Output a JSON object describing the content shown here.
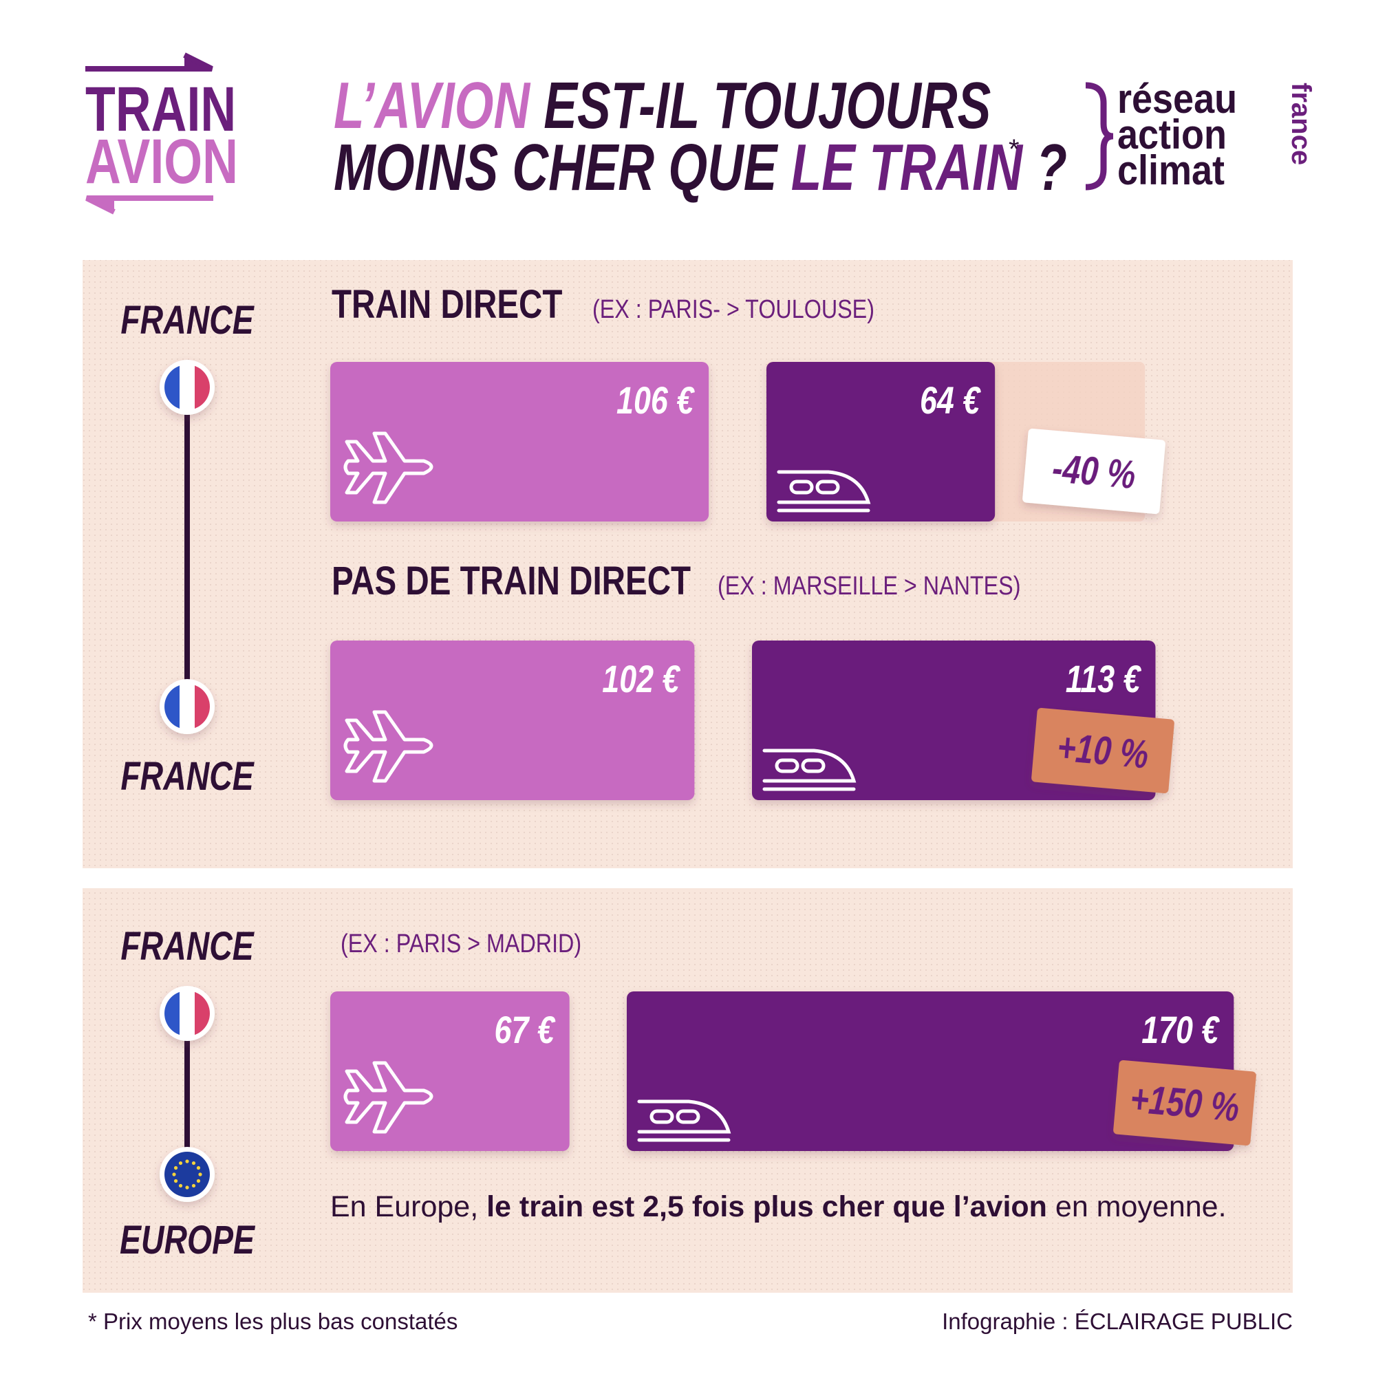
{
  "header": {
    "logo": [
      "TRAIN",
      "AVION"
    ],
    "title": {
      "plane": "L’AVION",
      "line1": " EST-IL TOUJOURS",
      "line2": "MOINS CHER QUE ",
      "train": "LE TRAIN",
      "end": " ?",
      "asterisk": "*"
    },
    "organisation": [
      "réseau",
      "action",
      "climat",
      "france"
    ]
  },
  "sections": [
    {
      "from": "FRANCE",
      "to": "FRANCE",
      "rows": [
        {
          "heading": "TRAIN DIRECT",
          "example": "(EX : PARIS- > TOULOUSE)",
          "plane": {
            "value": 106,
            "label": "106 €"
          },
          "train": {
            "value": 64,
            "label": "64 €"
          },
          "difference": "-40 %"
        },
        {
          "heading": "PAS DE TRAIN DIRECT",
          "example": "(EX : MARSEILLE > NANTES)",
          "plane": {
            "value": 102,
            "label": "102 €"
          },
          "train": {
            "value": 113,
            "label": "113 €"
          },
          "difference": "+10 %"
        }
      ]
    },
    {
      "from": "FRANCE",
      "to": "EUROPE",
      "rows": [
        {
          "example": "(EX : PARIS > MADRID)",
          "plane": {
            "value": 67,
            "label": "67 €"
          },
          "train": {
            "value": 170,
            "label": "170 €"
          },
          "difference": "+150 %"
        }
      ],
      "note": [
        "En Europe, ",
        "le train est 2,5 fois plus cher que l’avion",
        " en moyenne."
      ]
    }
  ],
  "footer": {
    "note": "* Prix moyens les plus bas constatés",
    "credit": "Infographie : ÉCLAIRAGE PUBLIC"
  }
}
